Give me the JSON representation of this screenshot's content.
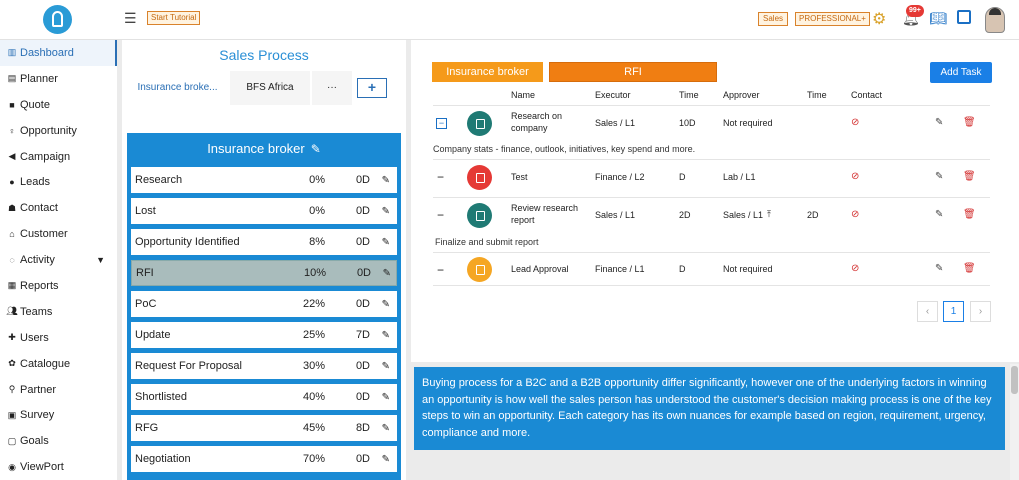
{
  "header": {
    "start_tutorial": "Start Tutorial",
    "sales_tag": "Sales",
    "plan_tag": "PROFESSIONAL+",
    "notification_count": "99+"
  },
  "sidebar": {
    "items": [
      {
        "label": "Dashboard",
        "icon": "bar-chart-icon"
      },
      {
        "label": "Planner",
        "icon": "planner-icon"
      },
      {
        "label": "Quote",
        "icon": "briefcase-icon"
      },
      {
        "label": "Opportunity",
        "icon": "bulb-icon"
      },
      {
        "label": "Campaign",
        "icon": "megaphone-icon"
      },
      {
        "label": "Leads",
        "icon": "leads-icon"
      },
      {
        "label": "Contact",
        "icon": "contact-icon"
      },
      {
        "label": "Customer",
        "icon": "bank-icon"
      },
      {
        "label": "Activity",
        "icon": "activity-icon"
      },
      {
        "label": "Reports",
        "icon": "reports-icon"
      },
      {
        "label": "Teams",
        "icon": "teams-icon"
      },
      {
        "label": "Users",
        "icon": "add-user-icon"
      },
      {
        "label": "Catalogue",
        "icon": "catalogue-icon"
      },
      {
        "label": "Partner",
        "icon": "partner-icon"
      },
      {
        "label": "Survey",
        "icon": "survey-icon"
      },
      {
        "label": "Goals",
        "icon": "goals-icon"
      },
      {
        "label": "ViewPort",
        "icon": "eye-icon"
      }
    ]
  },
  "sales": {
    "title": "Sales Process",
    "tabs": [
      "Insurance broke...",
      "BFS Africa",
      "···"
    ],
    "add_label": "+",
    "stage_title": "Insurance broker",
    "stages": [
      {
        "name": "Research",
        "pct": "0%",
        "days": "0D"
      },
      {
        "name": "Lost",
        "pct": "0%",
        "days": "0D"
      },
      {
        "name": "Opportunity Identified",
        "pct": "8%",
        "days": "0D"
      },
      {
        "name": "RFI",
        "pct": "10%",
        "days": "0D"
      },
      {
        "name": "PoC",
        "pct": "22%",
        "days": "0D"
      },
      {
        "name": "Update",
        "pct": "25%",
        "days": "7D"
      },
      {
        "name": "Request For Proposal",
        "pct": "30%",
        "days": "0D"
      },
      {
        "name": "Shortlisted",
        "pct": "40%",
        "days": "0D"
      },
      {
        "name": "RFG",
        "pct": "45%",
        "days": "8D"
      },
      {
        "name": "Negotiation",
        "pct": "70%",
        "days": "0D"
      }
    ]
  },
  "tasks": {
    "stage_label": "Insurance broker",
    "step_label": "RFI",
    "add_task": "Add Task",
    "columns": [
      "Name",
      "Executor",
      "Time",
      "Approver",
      "Time",
      "Contact"
    ],
    "rows": [
      {
        "name": "Research on company",
        "executor": "Sales / L1",
        "time": "10D",
        "approver": "Not required",
        "time2": "",
        "color": "#1f7a74"
      },
      {
        "name": "Test",
        "executor": "Finance / L2",
        "time": "D",
        "approver": "Lab / L1",
        "time2": "",
        "color": "#e53935"
      },
      {
        "name": "Review research report",
        "executor": "Sales / L1",
        "time": "2D",
        "approver": "Sales / L1",
        "time2": "2D",
        "color": "#1f7a74"
      },
      {
        "name": "Lead Approval",
        "executor": "Finance / L1",
        "time": "D",
        "approver": "Not required",
        "time2": "",
        "color": "#f5a623"
      }
    ],
    "note1": "Company stats - finance, outlook, initiatives, key spend and more.",
    "note2": "Finalize and submit report",
    "page": "1"
  },
  "info": {
    "text": "Buying process for a B2C and a B2B opportunity differ significantly, however one of the underlying factors in winning an opportunity is how well the sales person has understood the customer's decision making process is one of the key steps to win an opportunity. Each category has its own nuances for example based on region, requirement, urgency, compliance and more."
  }
}
